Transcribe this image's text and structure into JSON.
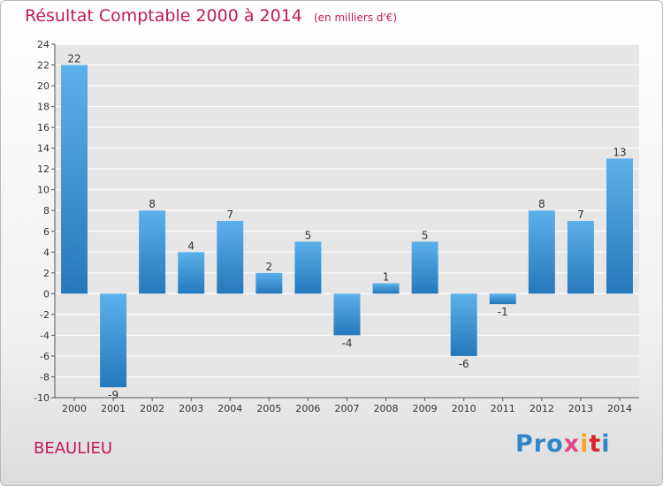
{
  "header": {
    "title": "Résultat Comptable 2000 à 2014",
    "unit": "(en milliers d'€)"
  },
  "footer": {
    "commune": "BEAULIEU",
    "logo": [
      "Pro",
      "x",
      "i",
      "t",
      "i"
    ]
  },
  "colors": {
    "title": "#c2185b",
    "bar_top": "#5cb0ea",
    "bar_bottom": "#2578bb",
    "grid": "#ffffff",
    "background": "#e6e6e6"
  },
  "chart_data": {
    "type": "bar",
    "title": "Résultat Comptable 2000 à 2014",
    "subtitle": "(en milliers d'€)",
    "categories": [
      "2000",
      "2001",
      "2002",
      "2003",
      "2004",
      "2005",
      "2006",
      "2007",
      "2008",
      "2009",
      "2010",
      "2011",
      "2012",
      "2013",
      "2014"
    ],
    "values": [
      22,
      -9,
      8,
      4,
      7,
      2,
      5,
      -4,
      1,
      5,
      -6,
      -1,
      8,
      7,
      13
    ],
    "ylim": [
      -10,
      24
    ],
    "yticks": [
      -10,
      -8,
      -6,
      -4,
      -2,
      0,
      2,
      4,
      6,
      8,
      10,
      12,
      14,
      16,
      18,
      20,
      22,
      24
    ],
    "grid": true,
    "xlabel": "",
    "ylabel": ""
  }
}
